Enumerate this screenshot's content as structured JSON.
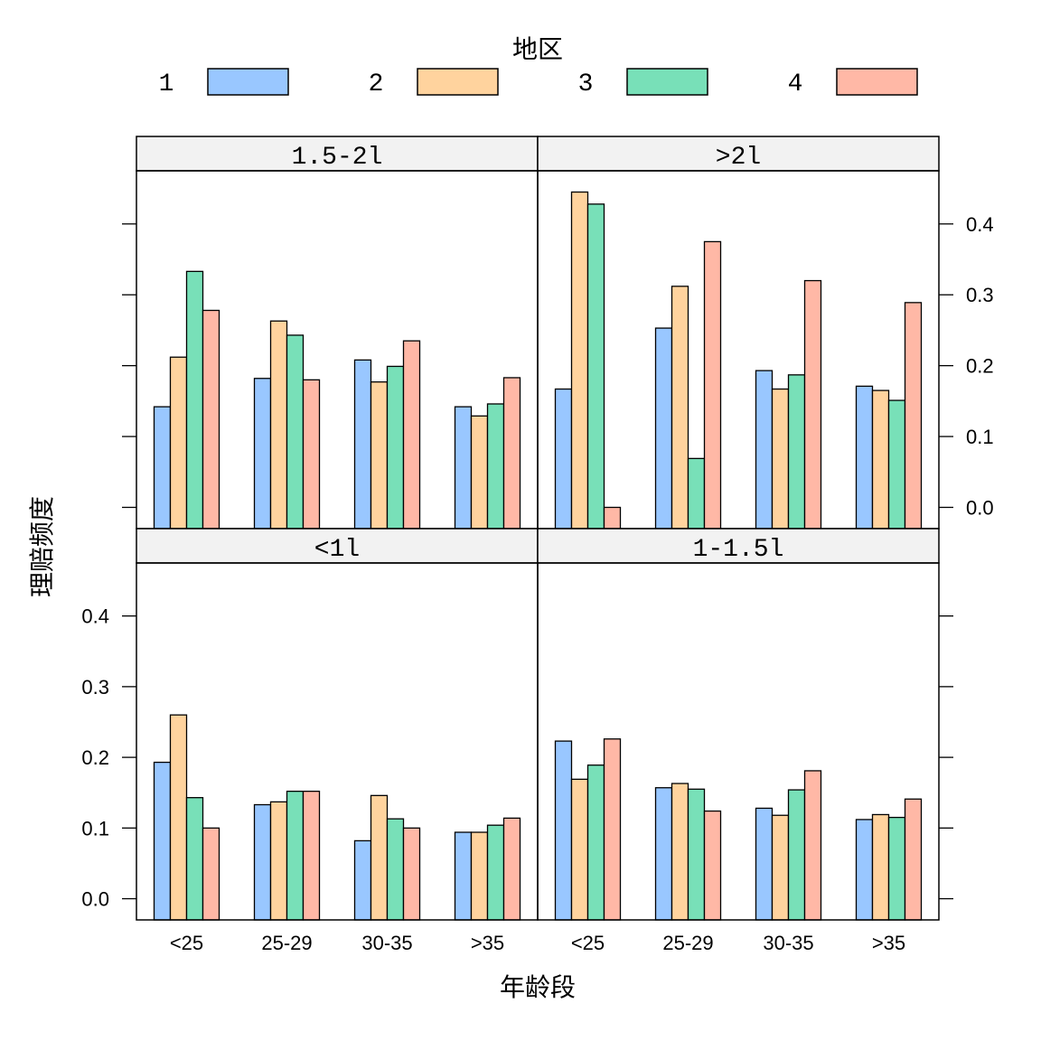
{
  "chart_data": {
    "type": "bar",
    "xlabel": "年龄段",
    "ylabel": "理赔频度",
    "legend": {
      "title": "地区",
      "placement": "top",
      "entries": [
        "1",
        "2",
        "3",
        "4"
      ]
    },
    "categories": [
      "<25",
      "25-29",
      "30-35",
      ">35"
    ],
    "ylim": [
      -0.03,
      0.475
    ],
    "yticks": [
      "0.0",
      "0.1",
      "0.2",
      "0.3",
      "0.4"
    ],
    "colors": {
      "1": "#99c7ff",
      "2": "#ffd39e",
      "3": "#78e0b8",
      "4": "#ffb8a6"
    },
    "panels": [
      {
        "strip": "1.5-2l",
        "series": [
          {
            "name": "1",
            "values": [
              0.142,
              0.182,
              0.208,
              0.142
            ]
          },
          {
            "name": "2",
            "values": [
              0.212,
              0.263,
              0.177,
              0.129
            ]
          },
          {
            "name": "3",
            "values": [
              0.333,
              0.243,
              0.199,
              0.146
            ]
          },
          {
            "name": "4",
            "values": [
              0.278,
              0.18,
              0.235,
              0.183
            ]
          }
        ]
      },
      {
        "strip": ">2l",
        "series": [
          {
            "name": "1",
            "values": [
              0.167,
              0.253,
              0.193,
              0.171
            ]
          },
          {
            "name": "2",
            "values": [
              0.445,
              0.312,
              0.167,
              0.165
            ]
          },
          {
            "name": "3",
            "values": [
              0.428,
              0.069,
              0.187,
              0.151
            ]
          },
          {
            "name": "4",
            "values": [
              0.0,
              0.375,
              0.32,
              0.289
            ]
          }
        ]
      },
      {
        "strip": "<1l",
        "series": [
          {
            "name": "1",
            "values": [
              0.193,
              0.133,
              0.082,
              0.094
            ]
          },
          {
            "name": "2",
            "values": [
              0.26,
              0.137,
              0.146,
              0.094
            ]
          },
          {
            "name": "3",
            "values": [
              0.143,
              0.152,
              0.113,
              0.104
            ]
          },
          {
            "name": "4",
            "values": [
              0.1,
              0.152,
              0.1,
              0.114
            ]
          }
        ]
      },
      {
        "strip": "1-1.5l",
        "series": [
          {
            "name": "1",
            "values": [
              0.223,
              0.157,
              0.128,
              0.112
            ]
          },
          {
            "name": "2",
            "values": [
              0.169,
              0.163,
              0.118,
              0.119
            ]
          },
          {
            "name": "3",
            "values": [
              0.189,
              0.155,
              0.154,
              0.115
            ]
          },
          {
            "name": "4",
            "values": [
              0.226,
              0.124,
              0.181,
              0.141
            ]
          }
        ]
      }
    ]
  }
}
